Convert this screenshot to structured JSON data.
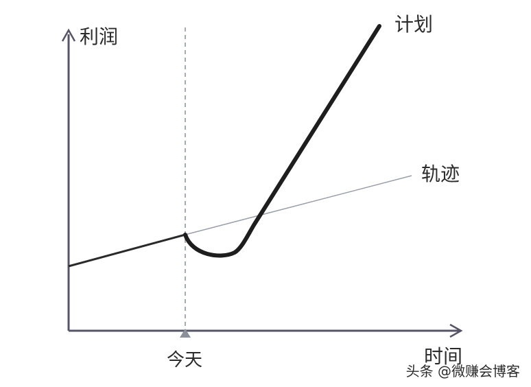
{
  "labels": {
    "y_axis": "利润",
    "x_axis": "时间",
    "today": "今天",
    "plan": "计划",
    "trajectory": "轨迹"
  },
  "watermark": "头条 @微赚会博客",
  "colors": {
    "axis": "#555566",
    "plan_line": "#1e1e1e",
    "trajectory_line": "#9aa0a8",
    "today_marker": "#8a8f99"
  }
}
